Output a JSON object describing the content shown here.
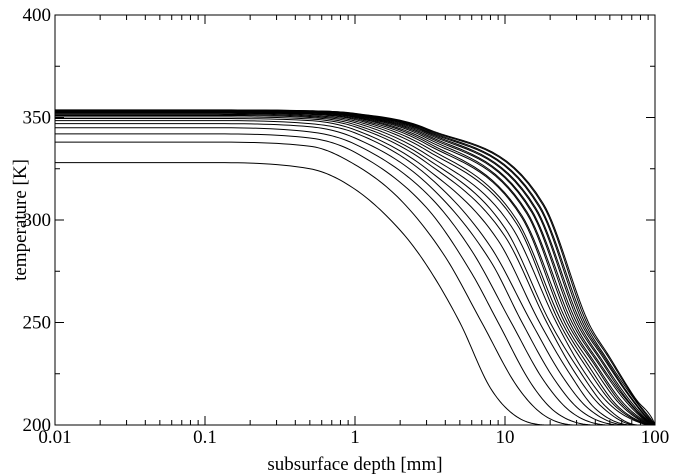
{
  "chart_data": {
    "type": "line",
    "xlabel": "subsurface depth [mm]",
    "ylabel": "temperature [K]",
    "x_scale": "log",
    "xlim": [
      0.01,
      100
    ],
    "ylim": [
      200,
      400
    ],
    "x_ticks": [
      {
        "value": 0.01,
        "label": "0.01"
      },
      {
        "value": 0.1,
        "label": "0.1"
      },
      {
        "value": 1,
        "label": "1"
      },
      {
        "value": 10,
        "label": "10"
      },
      {
        "value": 100,
        "label": "100"
      }
    ],
    "y_ticks": [
      {
        "value": 200,
        "label": "200"
      },
      {
        "value": 250,
        "label": "250"
      },
      {
        "value": 300,
        "label": "300"
      },
      {
        "value": 350,
        "label": "350"
      },
      {
        "value": 400,
        "label": "400"
      }
    ],
    "grid": false,
    "legend": "none",
    "line_color": "#000000",
    "series": [
      {
        "values": [
          [
            0.01,
            328
          ],
          [
            0.1,
            328
          ],
          [
            0.5,
            325
          ],
          [
            1,
            315
          ],
          [
            2,
            295
          ],
          [
            3,
            278
          ],
          [
            5,
            250
          ],
          [
            8,
            218
          ],
          [
            12,
            204
          ],
          [
            20,
            200
          ],
          [
            100,
            200
          ]
        ]
      },
      {
        "values": [
          [
            0.01,
            338
          ],
          [
            0.1,
            338
          ],
          [
            0.5,
            336
          ],
          [
            1,
            327
          ],
          [
            2,
            310
          ],
          [
            4,
            282
          ],
          [
            7,
            250
          ],
          [
            12,
            219
          ],
          [
            18,
            205
          ],
          [
            30,
            200
          ],
          [
            100,
            200
          ]
        ]
      },
      {
        "values": [
          [
            0.01,
            342
          ],
          [
            0.1,
            342
          ],
          [
            0.5,
            340
          ],
          [
            1,
            333
          ],
          [
            3,
            306
          ],
          [
            6,
            274
          ],
          [
            9,
            250
          ],
          [
            15,
            220
          ],
          [
            22,
            206
          ],
          [
            40,
            200
          ],
          [
            100,
            200
          ]
        ]
      },
      {
        "values": [
          [
            0.01,
            345
          ],
          [
            0.1,
            345
          ],
          [
            0.5,
            343
          ],
          [
            1,
            337
          ],
          [
            3,
            313
          ],
          [
            6,
            285
          ],
          [
            11,
            250
          ],
          [
            18,
            222
          ],
          [
            28,
            206
          ],
          [
            50,
            200
          ],
          [
            100,
            200
          ]
        ]
      },
      {
        "values": [
          [
            0.01,
            347
          ],
          [
            0.1,
            347
          ],
          [
            0.5,
            345.5
          ],
          [
            1,
            340
          ],
          [
            3,
            318
          ],
          [
            8,
            280
          ],
          [
            13,
            250
          ],
          [
            21,
            223
          ],
          [
            32,
            207
          ],
          [
            60,
            200
          ],
          [
            100,
            200
          ]
        ]
      },
      {
        "values": [
          [
            0.01,
            348.5
          ],
          [
            0.1,
            348.5
          ],
          [
            0.5,
            347
          ],
          [
            1,
            342.5
          ],
          [
            3,
            322
          ],
          [
            8,
            287
          ],
          [
            15,
            250
          ],
          [
            24,
            224
          ],
          [
            36,
            208
          ],
          [
            65,
            200
          ],
          [
            100,
            200
          ]
        ]
      },
      {
        "values": [
          [
            0.01,
            349.5
          ],
          [
            0.1,
            349.5
          ],
          [
            0.5,
            348.5
          ],
          [
            1,
            344
          ],
          [
            3,
            325
          ],
          [
            9,
            290
          ],
          [
            17,
            250
          ],
          [
            27,
            225
          ],
          [
            40,
            208
          ],
          [
            70,
            200
          ],
          [
            100,
            200
          ]
        ]
      },
      {
        "values": [
          [
            0.01,
            350.3
          ],
          [
            0.1,
            350.3
          ],
          [
            0.5,
            349.3
          ],
          [
            1,
            345.5
          ],
          [
            3,
            328
          ],
          [
            10,
            292
          ],
          [
            19,
            250
          ],
          [
            29,
            226
          ],
          [
            44,
            209
          ],
          [
            75,
            200
          ],
          [
            100,
            200
          ]
        ]
      },
      {
        "values": [
          [
            0.01,
            351
          ],
          [
            0.1,
            351
          ],
          [
            0.5,
            350
          ],
          [
            1,
            346.5
          ],
          [
            3,
            330
          ],
          [
            10,
            296
          ],
          [
            20,
            250
          ],
          [
            31,
            227
          ],
          [
            47,
            209
          ],
          [
            78,
            200
          ],
          [
            100,
            200
          ]
        ]
      },
      {
        "values": [
          [
            0.01,
            351.5
          ],
          [
            0.1,
            351.5
          ],
          [
            0.5,
            350.5
          ],
          [
            1,
            347.5
          ],
          [
            3,
            332
          ],
          [
            11,
            297
          ],
          [
            22,
            250
          ],
          [
            33,
            227
          ],
          [
            50,
            210
          ],
          [
            80,
            201
          ],
          [
            100,
            200
          ]
        ]
      },
      {
        "values": [
          [
            0.01,
            352
          ],
          [
            0.1,
            352
          ],
          [
            0.5,
            351
          ],
          [
            1,
            348.3
          ],
          [
            3,
            334
          ],
          [
            12,
            298
          ],
          [
            23,
            250
          ],
          [
            35,
            228
          ],
          [
            53,
            210
          ],
          [
            82,
            201
          ],
          [
            100,
            200
          ]
        ]
      },
      {
        "values": [
          [
            0.01,
            352.3
          ],
          [
            0.1,
            352.3
          ],
          [
            0.5,
            351.5
          ],
          [
            1,
            349
          ],
          [
            3,
            335.5
          ],
          [
            12,
            300
          ],
          [
            24,
            250
          ],
          [
            36,
            229
          ],
          [
            55,
            210
          ],
          [
            84,
            201
          ],
          [
            100,
            200
          ]
        ]
      },
      {
        "values": [
          [
            0.01,
            352.6
          ],
          [
            0.1,
            352.6
          ],
          [
            0.5,
            351.8
          ],
          [
            1,
            349.5
          ],
          [
            3,
            337
          ],
          [
            13,
            301
          ],
          [
            25,
            250
          ],
          [
            38,
            229
          ],
          [
            57,
            211
          ],
          [
            86,
            201
          ],
          [
            100,
            200
          ]
        ]
      },
      {
        "values": [
          [
            0.01,
            352.8
          ],
          [
            0.1,
            352.8
          ],
          [
            0.5,
            352.1
          ],
          [
            1,
            350
          ],
          [
            3,
            338
          ],
          [
            13,
            302
          ],
          [
            26,
            250
          ],
          [
            39,
            230
          ],
          [
            59,
            211
          ],
          [
            88,
            201
          ],
          [
            100,
            200
          ]
        ]
      },
      {
        "values": [
          [
            0.01,
            353
          ],
          [
            0.1,
            353
          ],
          [
            0.5,
            352.3
          ],
          [
            1,
            350.3
          ],
          [
            3,
            339
          ],
          [
            14,
            303
          ],
          [
            27,
            250
          ],
          [
            40,
            230
          ],
          [
            61,
            211
          ],
          [
            90,
            201
          ],
          [
            100,
            200
          ]
        ]
      },
      {
        "values": [
          [
            0.01,
            353.1
          ],
          [
            0.1,
            353.1
          ],
          [
            0.5,
            352.5
          ],
          [
            1,
            350.6
          ],
          [
            3,
            340
          ],
          [
            14,
            304
          ],
          [
            28,
            250
          ],
          [
            41,
            231
          ],
          [
            63,
            212
          ],
          [
            91,
            201
          ],
          [
            100,
            200
          ]
        ]
      },
      {
        "values": [
          [
            0.01,
            353.2
          ],
          [
            0.1,
            353.2
          ],
          [
            0.5,
            352.7
          ],
          [
            1,
            350.9
          ],
          [
            3,
            340.8
          ],
          [
            15,
            304
          ],
          [
            29,
            250
          ],
          [
            42,
            231
          ],
          [
            65,
            212
          ],
          [
            92,
            201
          ],
          [
            100,
            200
          ]
        ]
      },
      {
        "values": [
          [
            0.01,
            353.3
          ],
          [
            0.1,
            353.3
          ],
          [
            0.5,
            352.8
          ],
          [
            1,
            351.1
          ],
          [
            3,
            341.5
          ],
          [
            15,
            305
          ],
          [
            30,
            250
          ],
          [
            43,
            232
          ],
          [
            66,
            212
          ],
          [
            93,
            201
          ],
          [
            100,
            200
          ]
        ]
      },
      {
        "values": [
          [
            0.01,
            353.4
          ],
          [
            0.1,
            353.4
          ],
          [
            0.5,
            352.9
          ],
          [
            1,
            351.3
          ],
          [
            3,
            342.2
          ],
          [
            16,
            305
          ],
          [
            31,
            250
          ],
          [
            44,
            232
          ],
          [
            68,
            212
          ],
          [
            94,
            201
          ],
          [
            100,
            200
          ]
        ]
      },
      {
        "values": [
          [
            0.01,
            353.5
          ],
          [
            0.1,
            353.5
          ],
          [
            0.5,
            353
          ],
          [
            1,
            351.5
          ],
          [
            3,
            342.8
          ],
          [
            16,
            306
          ],
          [
            32,
            250
          ],
          [
            45,
            233
          ],
          [
            69,
            213
          ],
          [
            95,
            201
          ],
          [
            100,
            200
          ]
        ]
      },
      {
        "values": [
          [
            0.01,
            353.55
          ],
          [
            0.1,
            353.55
          ],
          [
            0.5,
            353.1
          ],
          [
            1,
            351.7
          ],
          [
            3,
            343.3
          ],
          [
            17,
            306
          ],
          [
            33,
            250
          ],
          [
            46,
            233
          ],
          [
            70,
            213
          ],
          [
            96,
            201
          ],
          [
            100,
            200
          ]
        ]
      },
      {
        "values": [
          [
            0.01,
            353.6
          ],
          [
            0.1,
            353.6
          ],
          [
            0.5,
            353.2
          ],
          [
            1,
            351.8
          ],
          [
            3,
            343.8
          ],
          [
            17,
            307
          ],
          [
            34,
            250
          ],
          [
            47,
            233
          ],
          [
            72,
            213
          ],
          [
            97,
            201
          ],
          [
            100,
            200
          ]
        ]
      },
      {
        "values": [
          [
            0.01,
            353.65
          ],
          [
            0.1,
            353.65
          ],
          [
            0.5,
            353.25
          ],
          [
            1,
            351.9
          ],
          [
            3,
            344.2
          ],
          [
            18,
            307
          ],
          [
            35,
            250
          ],
          [
            48,
            234
          ],
          [
            73,
            213
          ],
          [
            98,
            201
          ],
          [
            100,
            200
          ]
        ]
      },
      {
        "values": [
          [
            0.01,
            353.7
          ],
          [
            0.1,
            353.7
          ],
          [
            0.5,
            353.3
          ],
          [
            1,
            352
          ],
          [
            3,
            344.6
          ],
          [
            18,
            308
          ],
          [
            36,
            250
          ],
          [
            49,
            234
          ],
          [
            74,
            213
          ],
          [
            99,
            201
          ],
          [
            100,
            200
          ]
        ]
      }
    ]
  }
}
